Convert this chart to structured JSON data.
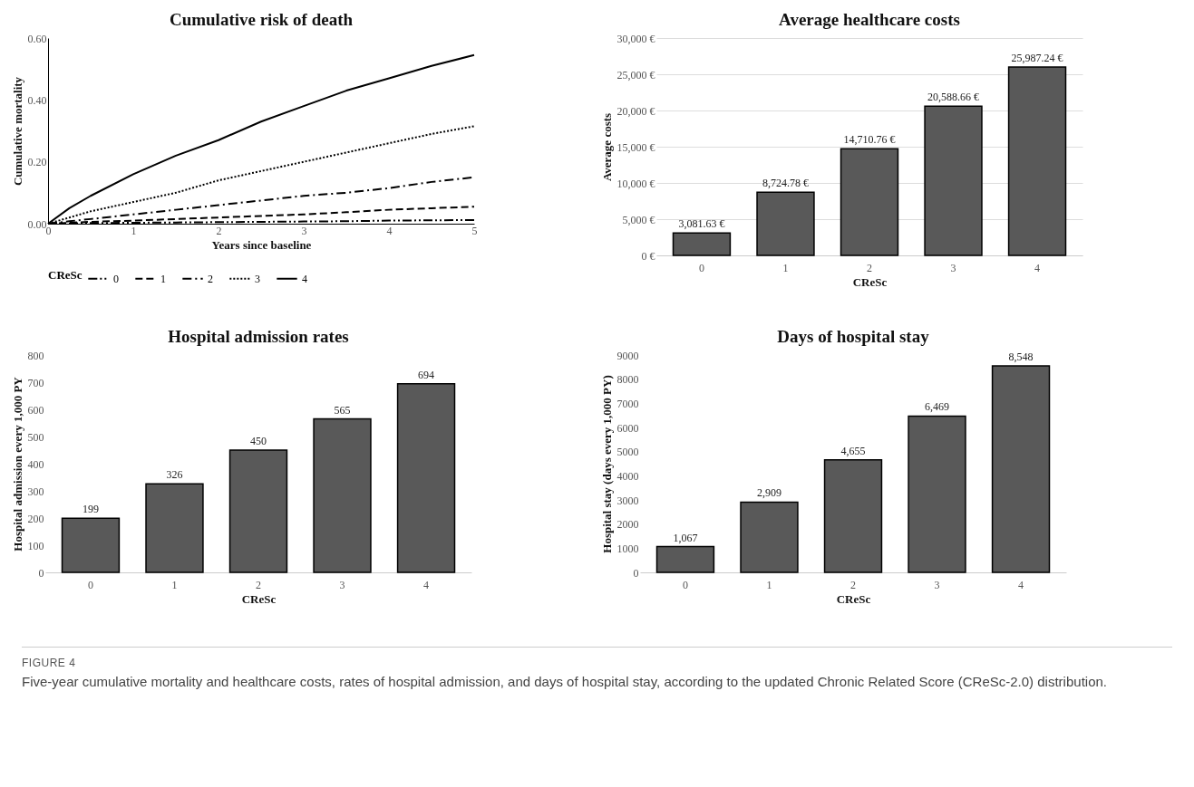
{
  "chart_data": [
    {
      "type": "line",
      "title": "Cumulative risk of death",
      "xlabel": "Years since baseline",
      "ylabel": "Cumulative  mortality",
      "legend_title": "CReSc",
      "legend": "bottom",
      "grid": false,
      "marker": "none",
      "x": [
        0,
        0.25,
        0.5,
        1,
        1.5,
        2,
        2.5,
        3,
        3.5,
        4,
        4.5,
        5
      ],
      "xlim": [
        0,
        5
      ],
      "xticks": [
        0,
        1,
        2,
        3,
        4,
        5
      ],
      "ylim": [
        0,
        0.6
      ],
      "yticks": [
        {
          "value": 0,
          "label": "0.00"
        },
        {
          "value": 0.2,
          "label": "0.20"
        },
        {
          "value": 0.4,
          "label": "0.40"
        },
        {
          "value": 0.6,
          "label": "0.60"
        }
      ],
      "series": [
        {
          "name": "0",
          "color": "#000000",
          "line_style": "dashdotdot",
          "values": [
            0,
            0.001,
            0.002,
            0.003,
            0.004,
            0.005,
            0.006,
            0.007,
            0.008,
            0.01,
            0.011,
            0.012
          ]
        },
        {
          "name": "1",
          "color": "#000000",
          "line_style": "dashed",
          "values": [
            0,
            0.003,
            0.006,
            0.01,
            0.015,
            0.02,
            0.025,
            0.03,
            0.037,
            0.045,
            0.05,
            0.055
          ]
        },
        {
          "name": "2",
          "color": "#000000",
          "line_style": "dashdot",
          "values": [
            0,
            0.008,
            0.015,
            0.03,
            0.045,
            0.06,
            0.075,
            0.09,
            0.1,
            0.115,
            0.135,
            0.15
          ]
        },
        {
          "name": "3",
          "color": "#000000",
          "line_style": "dotted",
          "values": [
            0,
            0.02,
            0.04,
            0.07,
            0.1,
            0.14,
            0.17,
            0.2,
            0.23,
            0.26,
            0.29,
            0.315
          ]
        },
        {
          "name": "4",
          "color": "#000000",
          "line_style": "solid",
          "values": [
            0,
            0.05,
            0.09,
            0.16,
            0.22,
            0.27,
            0.33,
            0.38,
            0.43,
            0.47,
            0.51,
            0.545
          ]
        }
      ]
    },
    {
      "type": "bar",
      "title": "Average healthcare costs",
      "xlabel": "CReSc",
      "ylabel": "Average  costs",
      "grid": "y",
      "categories": [
        "0",
        "1",
        "2",
        "3",
        "4"
      ],
      "values": [
        3081.63,
        8724.78,
        14710.76,
        20588.66,
        25987.24
      ],
      "color": "#595959",
      "value_labels": [
        "3,081.63 €",
        "8,724.78 €",
        "14,710.76 €",
        "20,588.66 €",
        "25,987.24 €"
      ],
      "ylim": [
        0,
        30000
      ],
      "yticks": [
        {
          "value": 0,
          "label": "0 €"
        },
        {
          "value": 5000,
          "label": "5,000 €"
        },
        {
          "value": 10000,
          "label": "10,000 €"
        },
        {
          "value": 15000,
          "label": "15,000 €"
        },
        {
          "value": 20000,
          "label": "20,000 €"
        },
        {
          "value": 25000,
          "label": "25,000 €"
        },
        {
          "value": 30000,
          "label": "30,000 €"
        }
      ]
    },
    {
      "type": "bar",
      "title": "Hospital admission rates",
      "xlabel": "CReSc",
      "ylabel": "Hospital admission every 1,000 PY",
      "categories": [
        "0",
        "1",
        "2",
        "3",
        "4"
      ],
      "values": [
        199,
        326,
        450,
        565,
        694
      ],
      "color": "#595959",
      "data_labels": true,
      "ylim": [
        0,
        800
      ],
      "yticks": [
        0,
        100,
        200,
        300,
        400,
        500,
        600,
        700,
        800
      ]
    },
    {
      "type": "bar",
      "title": "Days of hospital stay",
      "xlabel": "CReSc",
      "ylabel": "Hospital stay (days every 1,000 PY)",
      "categories": [
        "0",
        "1",
        "2",
        "3",
        "4"
      ],
      "values": [
        1067,
        2909,
        4655,
        6469,
        8548
      ],
      "color": "#595959",
      "value_labels": [
        "1,067",
        "2,909",
        "4,655",
        "6,469",
        "8,548"
      ],
      "ylim": [
        0,
        9000
      ],
      "yticks": [
        0,
        1000,
        2000,
        3000,
        4000,
        5000,
        6000,
        7000,
        8000,
        9000
      ],
      "annotations": [
        "FIGURE 4",
        "Five-year cumulative mortality and healthcare costs, rates of hospital admission, and days of hospital stay, according to the updated Chronic Related Score (CReSc-2.0) distribution."
      ]
    }
  ]
}
